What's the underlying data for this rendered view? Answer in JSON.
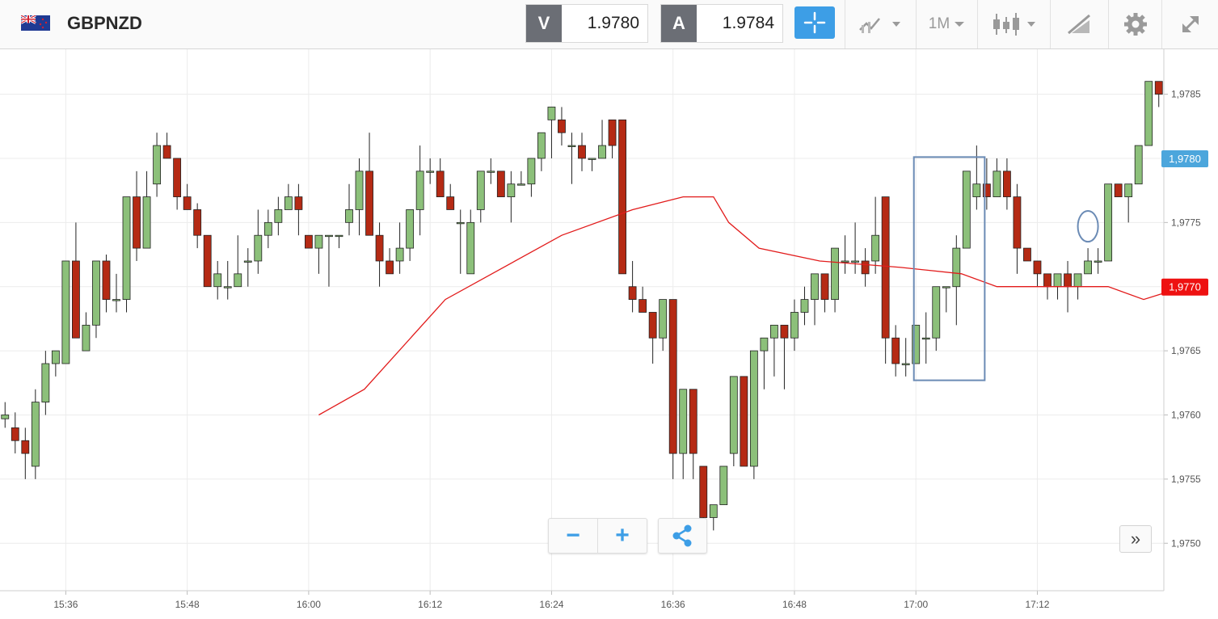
{
  "header": {
    "symbol": "GBPNZD",
    "flag_icon": "gb-nz-flag-icon",
    "sell": {
      "tag": "V",
      "value": "1.9780"
    },
    "buy": {
      "tag": "A",
      "value": "1.9784"
    },
    "timeframe": "1M",
    "tools": [
      "crosshair-icon",
      "indicators-icon",
      "timeframe-dropdown",
      "candlestick-icon",
      "drawing-icon",
      "gear-icon",
      "expand-icon"
    ]
  },
  "controls": {
    "zoom_out": "−",
    "zoom_in": "+",
    "scroll_right": "»"
  },
  "chart_data": {
    "type": "candlestick",
    "instrument": "GBPNZD",
    "interval": "1 minute",
    "x_ticks": [
      "15:36",
      "15:48",
      "16:00",
      "16:12",
      "16:24",
      "16:36",
      "16:48",
      "17:00",
      "17:12"
    ],
    "y_ticks": [
      "1,9785",
      "1,9780",
      "1,9775",
      "1,9770",
      "1,9765",
      "1,9760",
      "1,9755",
      "1,9750"
    ],
    "ylim": [
      1.97463,
      1.97885
    ],
    "xlim": [
      -0.5,
      114.5
    ],
    "grid": true,
    "up_color": "#8cc07a",
    "down_color": "#b52a14",
    "ma_color": "#e21b1b",
    "price_labels": [
      {
        "value": 1.978,
        "text": "1,9780",
        "color": "#4ca6dc"
      },
      {
        "value": 1.977,
        "text": "1,9770",
        "color": "#ee1111"
      }
    ],
    "ohlc": [
      [
        1.97597,
        1.9761,
        1.9759,
        1.976
      ],
      [
        1.9759,
        1.97602,
        1.9757,
        1.9758
      ],
      [
        1.9758,
        1.9759,
        1.9755,
        1.9757
      ],
      [
        1.9756,
        1.9762,
        1.9755,
        1.9761
      ],
      [
        1.9761,
        1.9765,
        1.976,
        1.9764
      ],
      [
        1.9764,
        1.9765,
        1.9763,
        1.9765
      ],
      [
        1.9764,
        1.9772,
        1.9764,
        1.9772
      ],
      [
        1.9772,
        1.9775,
        1.9766,
        1.9766
      ],
      [
        1.9765,
        1.9768,
        1.9765,
        1.9767
      ],
      [
        1.9767,
        1.9772,
        1.9766,
        1.9772
      ],
      [
        1.9772,
        1.97725,
        1.9768,
        1.9769
      ],
      [
        1.9769,
        1.9771,
        1.9768,
        1.9769
      ],
      [
        1.9769,
        1.9777,
        1.9768,
        1.9777
      ],
      [
        1.9777,
        1.9779,
        1.9772,
        1.9773
      ],
      [
        1.9773,
        1.9779,
        1.9773,
        1.9777
      ],
      [
        1.9778,
        1.9782,
        1.9777,
        1.9781
      ],
      [
        1.9781,
        1.9782,
        1.978,
        1.978
      ],
      [
        1.978,
        1.978,
        1.9776,
        1.9777
      ],
      [
        1.9777,
        1.9778,
        1.9776,
        1.9776
      ],
      [
        1.9776,
        1.97765,
        1.9773,
        1.9774
      ],
      [
        1.9774,
        1.9774,
        1.977,
        1.977
      ],
      [
        1.977,
        1.9772,
        1.9769,
        1.9771
      ],
      [
        1.977,
        1.9772,
        1.9769,
        1.977
      ],
      [
        1.977,
        1.9774,
        1.977,
        1.9771
      ],
      [
        1.9772,
        1.9773,
        1.977,
        1.9772
      ],
      [
        1.9772,
        1.9776,
        1.9771,
        1.9774
      ],
      [
        1.9774,
        1.9776,
        1.9773,
        1.9775
      ],
      [
        1.9775,
        1.9777,
        1.9774,
        1.9776
      ],
      [
        1.9776,
        1.9778,
        1.9776,
        1.9777
      ],
      [
        1.9777,
        1.9778,
        1.9774,
        1.9776
      ],
      [
        1.9774,
        1.9774,
        1.9773,
        1.9773
      ],
      [
        1.9773,
        1.9774,
        1.9771,
        1.9774
      ],
      [
        1.9774,
        1.9774,
        1.977,
        1.9774
      ],
      [
        1.9774,
        1.9774,
        1.9773,
        1.9774
      ],
      [
        1.9775,
        1.9778,
        1.9774,
        1.9776
      ],
      [
        1.9776,
        1.978,
        1.9774,
        1.9779
      ],
      [
        1.9779,
        1.9782,
        1.9774,
        1.9774
      ],
      [
        1.9774,
        1.9775,
        1.977,
        1.9772
      ],
      [
        1.9772,
        1.9773,
        1.9771,
        1.9771
      ],
      [
        1.9772,
        1.9775,
        1.9771,
        1.9773
      ],
      [
        1.9773,
        1.9776,
        1.9772,
        1.9776
      ],
      [
        1.9776,
        1.9781,
        1.9774,
        1.9779
      ],
      [
        1.9779,
        1.978,
        1.9778,
        1.9779
      ],
      [
        1.9779,
        1.978,
        1.9777,
        1.9777
      ],
      [
        1.9777,
        1.9778,
        1.9776,
        1.9776
      ],
      [
        1.9775,
        1.9776,
        1.9771,
        1.9775
      ],
      [
        1.9771,
        1.9776,
        1.9771,
        1.9775
      ],
      [
        1.9776,
        1.9779,
        1.9775,
        1.9779
      ],
      [
        1.9779,
        1.978,
        1.9778,
        1.9779
      ],
      [
        1.9779,
        1.9779,
        1.9777,
        1.9777
      ],
      [
        1.9777,
        1.9779,
        1.9775,
        1.9778
      ],
      [
        1.9778,
        1.9779,
        1.9778,
        1.9778
      ],
      [
        1.9778,
        1.978,
        1.9777,
        1.978
      ],
      [
        1.978,
        1.9782,
        1.9779,
        1.9782
      ],
      [
        1.9783,
        1.9784,
        1.978,
        1.9784
      ],
      [
        1.9783,
        1.9784,
        1.9781,
        1.9782
      ],
      [
        1.9781,
        1.9782,
        1.9778,
        1.9781
      ],
      [
        1.9781,
        1.9782,
        1.9779,
        1.978
      ],
      [
        1.978,
        1.978,
        1.9779,
        1.978
      ],
      [
        1.978,
        1.9783,
        1.978,
        1.9781
      ],
      [
        1.9783,
        1.9783,
        1.978,
        1.9781
      ],
      [
        1.9783,
        1.9783,
        1.9771,
        1.9771
      ],
      [
        1.977,
        1.9772,
        1.9768,
        1.9769
      ],
      [
        1.9769,
        1.977,
        1.9768,
        1.9768
      ],
      [
        1.9768,
        1.9768,
        1.9764,
        1.9766
      ],
      [
        1.9766,
        1.9769,
        1.9765,
        1.9769
      ],
      [
        1.9769,
        1.9769,
        1.9755,
        1.9757
      ],
      [
        1.9757,
        1.9762,
        1.9755,
        1.9762
      ],
      [
        1.9762,
        1.9762,
        1.9755,
        1.9757
      ],
      [
        1.9756,
        1.9756,
        1.9751,
        1.9752
      ],
      [
        1.9752,
        1.9753,
        1.9751,
        1.9753
      ],
      [
        1.9753,
        1.9756,
        1.9753,
        1.9756
      ],
      [
        1.9757,
        1.9763,
        1.9756,
        1.9763
      ],
      [
        1.9763,
        1.9763,
        1.9756,
        1.9756
      ],
      [
        1.9756,
        1.9765,
        1.9755,
        1.9765
      ],
      [
        1.9765,
        1.9766,
        1.9762,
        1.9766
      ],
      [
        1.9766,
        1.9767,
        1.9763,
        1.9767
      ],
      [
        1.9767,
        1.9767,
        1.9762,
        1.9766
      ],
      [
        1.9766,
        1.9769,
        1.9765,
        1.9768
      ],
      [
        1.9768,
        1.977,
        1.9767,
        1.9769
      ],
      [
        1.9769,
        1.9771,
        1.9767,
        1.9771
      ],
      [
        1.9771,
        1.9771,
        1.9768,
        1.9769
      ],
      [
        1.9769,
        1.9773,
        1.9768,
        1.9773
      ],
      [
        1.9772,
        1.9774,
        1.9771,
        1.9772
      ],
      [
        1.9772,
        1.9775,
        1.9771,
        1.9772
      ],
      [
        1.9772,
        1.9773,
        1.977,
        1.9771
      ],
      [
        1.9772,
        1.9777,
        1.9771,
        1.9774
      ],
      [
        1.9777,
        1.9777,
        1.9764,
        1.9766
      ],
      [
        1.9766,
        1.9767,
        1.9763,
        1.9764
      ],
      [
        1.9764,
        1.9766,
        1.9763,
        1.9764
      ],
      [
        1.9764,
        1.9767,
        1.9764,
        1.9767
      ],
      [
        1.9766,
        1.9768,
        1.9764,
        1.9766
      ],
      [
        1.9766,
        1.977,
        1.9765,
        1.977
      ],
      [
        1.977,
        1.977,
        1.9768,
        1.977
      ],
      [
        1.977,
        1.9774,
        1.9767,
        1.9773
      ],
      [
        1.9773,
        1.9779,
        1.9773,
        1.9779
      ],
      [
        1.9777,
        1.9781,
        1.9776,
        1.9778
      ],
      [
        1.9778,
        1.978,
        1.9776,
        1.9777
      ],
      [
        1.9777,
        1.978,
        1.9777,
        1.9779
      ],
      [
        1.9779,
        1.978,
        1.9776,
        1.9777
      ],
      [
        1.9777,
        1.9778,
        1.9771,
        1.9773
      ],
      [
        1.9773,
        1.9773,
        1.9772,
        1.9772
      ],
      [
        1.9772,
        1.9772,
        1.977,
        1.9771
      ],
      [
        1.9771,
        1.9771,
        1.9769,
        1.977
      ],
      [
        1.977,
        1.9771,
        1.9769,
        1.9771
      ],
      [
        1.9771,
        1.9772,
        1.9768,
        1.977
      ],
      [
        1.977,
        1.9771,
        1.9769,
        1.9771
      ],
      [
        1.9771,
        1.9773,
        1.9771,
        1.9772
      ],
      [
        1.9772,
        1.9773,
        1.9771,
        1.9772
      ],
      [
        1.9772,
        1.9778,
        1.9772,
        1.9778
      ],
      [
        1.9778,
        1.9778,
        1.9777,
        1.9777
      ],
      [
        1.9777,
        1.9778,
        1.9775,
        1.9778
      ],
      [
        1.9778,
        1.9781,
        1.9778,
        1.9781
      ],
      [
        1.9781,
        1.9786,
        1.9781,
        1.9786
      ],
      [
        1.9786,
        1.9786,
        1.9784,
        1.9785
      ]
    ],
    "ma_series": [
      [
        31.0,
        1.976
      ],
      [
        35.5,
        1.9762
      ],
      [
        43.5,
        1.9769
      ],
      [
        55.0,
        1.9774
      ],
      [
        62.0,
        1.9776
      ],
      [
        67.0,
        1.9777
      ],
      [
        70.0,
        1.9777
      ],
      [
        71.5,
        1.9775
      ],
      [
        74.5,
        1.9773
      ],
      [
        80.5,
        1.9772
      ],
      [
        88.5,
        1.97715
      ],
      [
        94.5,
        1.9771
      ],
      [
        98.0,
        1.977
      ],
      [
        102.5,
        1.977
      ],
      [
        109.0,
        1.977
      ],
      [
        112.5,
        1.9769
      ],
      [
        114.5,
        1.97695
      ]
    ],
    "annotations": [
      {
        "shape": "rectangle",
        "x_from": 89.8,
        "x_to": 96.8,
        "y_from": 1.97801,
        "y_to": 1.97627
      },
      {
        "shape": "ellipse",
        "x_center": 107.0,
        "y_center": 1.97747,
        "x_radius": 1.0,
        "y_radius": 0.00012
      }
    ]
  }
}
